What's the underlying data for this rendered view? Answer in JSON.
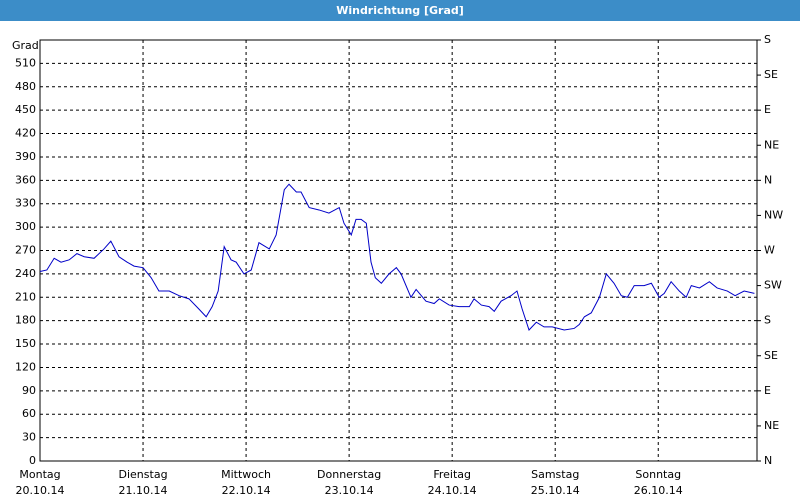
{
  "chart_data": {
    "type": "line",
    "title": "Windrichtung [Grad]",
    "y_label": "Grad",
    "xlim": [
      0,
      167
    ],
    "xticks": [
      {
        "value": 0,
        "label": "Montag",
        "date": "20.10.14"
      },
      {
        "value": 24,
        "label": "Dienstag",
        "date": "21.10.14"
      },
      {
        "value": 48,
        "label": "Mittwoch",
        "date": "22.10.14"
      },
      {
        "value": 72,
        "label": "Donnerstag",
        "date": "23.10.14"
      },
      {
        "value": 96,
        "label": "Freitag",
        "date": "24.10.14"
      },
      {
        "value": 120,
        "label": "Samstag",
        "date": "25.10.14"
      },
      {
        "value": 144,
        "label": "Sonntag",
        "date": "26.10.14"
      }
    ],
    "ylim": [
      0,
      540
    ],
    "yticks": [
      0,
      30,
      60,
      90,
      120,
      150,
      180,
      210,
      240,
      270,
      300,
      330,
      360,
      390,
      420,
      450,
      480,
      510
    ],
    "y2lim": [
      0,
      540
    ],
    "y2ticks": [
      {
        "value": 0,
        "label": "N"
      },
      {
        "value": 45,
        "label": "NE"
      },
      {
        "value": 90,
        "label": "E"
      },
      {
        "value": 135,
        "label": "SE"
      },
      {
        "value": 180,
        "label": "S"
      },
      {
        "value": 225,
        "label": "SW"
      },
      {
        "value": 270,
        "label": "W"
      },
      {
        "value": 315,
        "label": "NW"
      },
      {
        "value": 360,
        "label": "N"
      },
      {
        "value": 405,
        "label": "NE"
      },
      {
        "value": 450,
        "label": "E"
      },
      {
        "value": 495,
        "label": "SE"
      },
      {
        "value": 540,
        "label": "S"
      }
    ],
    "grid": true,
    "x": [
      0,
      1.6,
      3.3,
      4.9,
      6.8,
      8.6,
      10.3,
      12.6,
      14.9,
      16.5,
      18.4,
      20.3,
      21.9,
      24,
      25.9,
      27.7,
      30.1,
      32.4,
      34.7,
      37,
      38.7,
      40.1,
      41.5,
      42.9,
      44.5,
      45.7,
      47.5,
      49.2,
      51,
      53.4,
      55,
      56.9,
      58,
      59.7,
      60.8,
      62.7,
      65,
      67.3,
      69.7,
      70.8,
      72.5,
      73.6,
      74.8,
      76,
      77.1,
      78.1,
      79.5,
      81.3,
      83,
      84.1,
      86.4,
      87.6,
      89.9,
      91.8,
      93,
      95.3,
      97.6,
      100,
      101.1,
      102.8,
      104.6,
      105.8,
      107.4,
      109.7,
      111.1,
      112.3,
      113.9,
      115.6,
      117.4,
      119.3,
      122.1,
      124.4,
      125.6,
      126.8,
      128.4,
      130.3,
      131.9,
      133.7,
      135.4,
      136.8,
      138.4,
      140.7,
      142.4,
      144.2,
      145.4,
      147,
      148.9,
      150.5,
      151.7,
      153.6,
      155.9,
      157.7,
      160.1,
      161.9,
      164,
      166.4
    ],
    "series": [
      {
        "color": "#0000c8",
        "values": [
          243,
          245,
          260,
          255,
          258,
          266,
          262,
          260,
          272,
          282,
          262,
          255,
          250,
          248,
          235,
          218,
          218,
          212,
          208,
          195,
          185,
          198,
          218,
          275,
          258,
          255,
          240,
          245,
          280,
          272,
          290,
          348,
          355,
          345,
          345,
          325,
          322,
          318,
          325,
          305,
          290,
          310,
          310,
          305,
          255,
          235,
          228,
          240,
          248,
          240,
          210,
          220,
          205,
          202,
          208,
          200,
          198,
          198,
          208,
          200,
          198,
          192,
          205,
          212,
          218,
          195,
          168,
          178,
          172,
          172,
          168,
          170,
          175,
          185,
          190,
          210,
          240,
          228,
          212,
          210,
          225,
          225,
          228,
          210,
          215,
          230,
          218,
          210,
          225,
          222,
          230,
          222,
          218,
          212,
          218,
          215
        ]
      }
    ]
  }
}
